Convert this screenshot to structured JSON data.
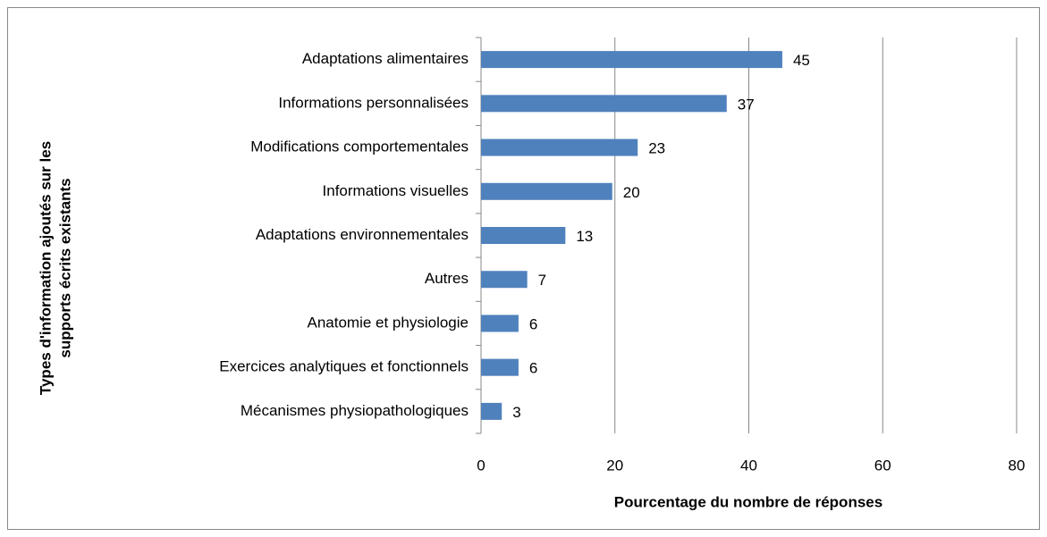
{
  "chart_data": {
    "type": "bar",
    "orientation": "horizontal",
    "xlabel": "Pourcentage du nombre de réponses",
    "ylabel": [
      "Types d'information ajoutés sur les",
      "supports écrits existants"
    ],
    "categories": [
      "Adaptations alimentaires",
      "Informations personnalisées",
      "Modifications comportementales",
      "Informations visuelles",
      "Adaptations environnementales",
      "Autres",
      "Anatomie et physiologie",
      "Exercices analytiques et fonctionnels",
      "Mécanismes physiopathologiques"
    ],
    "values": [
      45,
      36.7,
      23.4,
      19.6,
      12.6,
      6.9,
      5.6,
      5.6,
      3.1
    ],
    "value_labels": [
      "45",
      "37",
      "23",
      "20",
      "13",
      "7",
      "6",
      "6",
      "3"
    ],
    "color": "#4f81bd",
    "xlim": [
      0,
      80
    ],
    "xticks": [
      0,
      20,
      40,
      60,
      80
    ],
    "grid": true
  }
}
